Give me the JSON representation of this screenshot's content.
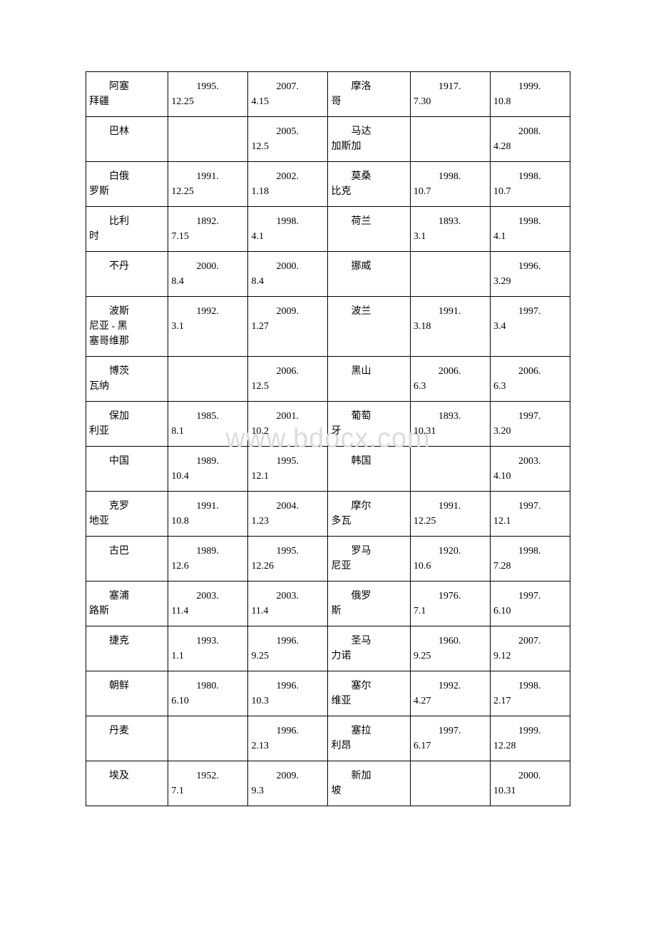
{
  "watermark": "www.bdocx.com",
  "table": {
    "border_color": "#000000",
    "background_color": "#ffffff",
    "text_color": "#000000",
    "font_size": 14,
    "font_family": "SimSun",
    "watermark_color": "#dcdcdc",
    "watermark_fontsize": 38,
    "columns": [
      {
        "type": "name",
        "width_pct": 17
      },
      {
        "type": "date",
        "width_pct": 16.5
      },
      {
        "type": "date",
        "width_pct": 16.5
      },
      {
        "type": "name",
        "width_pct": 17
      },
      {
        "type": "date",
        "width_pct": 16.5
      },
      {
        "type": "date",
        "width_pct": 16.5
      }
    ],
    "rows": [
      {
        "left": {
          "country_l1": "阿塞",
          "country_l2": "拜疆",
          "date1_y": "1995.",
          "date1_r": "12.25",
          "date2_y": "2007.",
          "date2_r": "4.15"
        },
        "right": {
          "country_l1": "摩洛",
          "country_l2": "哥",
          "date1_y": "1917.",
          "date1_r": "7.30",
          "date2_y": "1999.",
          "date2_r": "10.8"
        }
      },
      {
        "left": {
          "country_l1": "巴林",
          "country_l2": "",
          "date1_y": "",
          "date1_r": "",
          "date2_y": "2005.",
          "date2_r": "12.5"
        },
        "right": {
          "country_l1": "马达",
          "country_l2": "加斯加",
          "date1_y": "",
          "date1_r": "",
          "date2_y": "2008.",
          "date2_r": "4.28"
        }
      },
      {
        "left": {
          "country_l1": "白俄",
          "country_l2": "罗斯",
          "date1_y": "1991.",
          "date1_r": "12.25",
          "date2_y": "2002.",
          "date2_r": "1.18"
        },
        "right": {
          "country_l1": "莫桑",
          "country_l2": "比克",
          "date1_y": "1998.",
          "date1_r": "10.7",
          "date2_y": "1998.",
          "date2_r": "10.7"
        }
      },
      {
        "left": {
          "country_l1": "比利",
          "country_l2": "时",
          "date1_y": "1892.",
          "date1_r": "7.15",
          "date2_y": "1998.",
          "date2_r": "4.1"
        },
        "right": {
          "country_l1": "荷兰",
          "country_l2": "",
          "date1_y": "1893.",
          "date1_r": "3.1",
          "date2_y": "1998.",
          "date2_r": "4.1"
        }
      },
      {
        "left": {
          "country_l1": "不丹",
          "country_l2": "",
          "date1_y": "2000.",
          "date1_r": "8.4",
          "date2_y": "2000.",
          "date2_r": "8.4"
        },
        "right": {
          "country_l1": "挪威",
          "country_l2": "",
          "date1_y": "",
          "date1_r": "",
          "date2_y": "1996.",
          "date2_r": "3.29"
        }
      },
      {
        "tall": true,
        "left": {
          "country_l1": "波斯",
          "country_l2": "尼亚 - 黑",
          "country_l3": "塞哥维那",
          "date1_y": "1992.",
          "date1_r": "3.1",
          "date2_y": "2009.",
          "date2_r": "1.27"
        },
        "right": {
          "country_l1": "波兰",
          "country_l2": "",
          "date1_y": "1991.",
          "date1_r": "3.18",
          "date2_y": "1997.",
          "date2_r": "3.4"
        }
      },
      {
        "left": {
          "country_l1": "博茨",
          "country_l2": "瓦纳",
          "date1_y": "",
          "date1_r": "",
          "date2_y": "2006.",
          "date2_r": "12.5"
        },
        "right": {
          "country_l1": "黑山",
          "country_l2": "",
          "date1_y": "2006.",
          "date1_r": "6.3",
          "date2_y": "2006.",
          "date2_r": "6.3"
        }
      },
      {
        "left": {
          "country_l1": "保加",
          "country_l2": "利亚",
          "date1_y": "1985.",
          "date1_r": "8.1",
          "date2_y": "2001.",
          "date2_r": "10.2"
        },
        "right": {
          "country_l1": "葡萄",
          "country_l2": "牙",
          "date1_y": "1893.",
          "date1_r": "10.31",
          "date2_y": "1997.",
          "date2_r": "3.20"
        }
      },
      {
        "left": {
          "country_l1": "中国",
          "country_l2": "",
          "date1_y": "1989.",
          "date1_r": "10.4",
          "date2_y": "1995.",
          "date2_r": "12.1"
        },
        "right": {
          "country_l1": "韩国",
          "country_l2": "",
          "date1_y": "",
          "date1_r": "",
          "date2_y": "2003.",
          "date2_r": "4.10"
        }
      },
      {
        "left": {
          "country_l1": "克罗",
          "country_l2": "地亚",
          "date1_y": "1991.",
          "date1_r": "10.8",
          "date2_y": "2004.",
          "date2_r": "1.23"
        },
        "right": {
          "country_l1": "摩尔",
          "country_l2": "多瓦",
          "date1_y": "1991.",
          "date1_r": "12.25",
          "date2_y": "1997.",
          "date2_r": "12.1"
        }
      },
      {
        "left": {
          "country_l1": "古巴",
          "country_l2": "",
          "date1_y": "1989.",
          "date1_r": "12.6",
          "date2_y": "1995.",
          "date2_r": "12.26"
        },
        "right": {
          "country_l1": "罗马",
          "country_l2": "尼亚",
          "date1_y": "1920.",
          "date1_r": "10.6",
          "date2_y": "1998.",
          "date2_r": "7.28"
        }
      },
      {
        "left": {
          "country_l1": "塞浦",
          "country_l2": "路斯",
          "date1_y": "2003.",
          "date1_r": "11.4",
          "date2_y": "2003.",
          "date2_r": "11.4"
        },
        "right": {
          "country_l1": "俄罗",
          "country_l2": "斯",
          "date1_y": "1976.",
          "date1_r": "7.1",
          "date2_y": "1997.",
          "date2_r": "6.10"
        }
      },
      {
        "left": {
          "country_l1": "捷克",
          "country_l2": "",
          "date1_y": "1993.",
          "date1_r": "1.1",
          "date2_y": "1996.",
          "date2_r": "9.25"
        },
        "right": {
          "country_l1": "圣马",
          "country_l2": "力诺",
          "date1_y": "1960.",
          "date1_r": "9.25",
          "date2_y": "2007.",
          "date2_r": "9.12"
        }
      },
      {
        "left": {
          "country_l1": "朝鲜",
          "country_l2": "",
          "date1_y": "1980.",
          "date1_r": "6.10",
          "date2_y": "1996.",
          "date2_r": "10.3"
        },
        "right": {
          "country_l1": "塞尔",
          "country_l2": "维亚",
          "date1_y": "1992.",
          "date1_r": "4.27",
          "date2_y": "1998.",
          "date2_r": "2.17"
        }
      },
      {
        "left": {
          "country_l1": "丹麦",
          "country_l2": "",
          "date1_y": "",
          "date1_r": "",
          "date2_y": "1996.",
          "date2_r": "2.13"
        },
        "right": {
          "country_l1": "塞拉",
          "country_l2": "利昂",
          "date1_y": "1997.",
          "date1_r": "6.17",
          "date2_y": "1999.",
          "date2_r": "12.28"
        }
      },
      {
        "left": {
          "country_l1": "埃及",
          "country_l2": "",
          "date1_y": "1952.",
          "date1_r": "7.1",
          "date2_y": "2009.",
          "date2_r": "9.3"
        },
        "right": {
          "country_l1": "新加",
          "country_l2": "坡",
          "date1_y": "",
          "date1_r": "",
          "date2_y": "2000.",
          "date2_r": "10.31"
        }
      }
    ]
  }
}
